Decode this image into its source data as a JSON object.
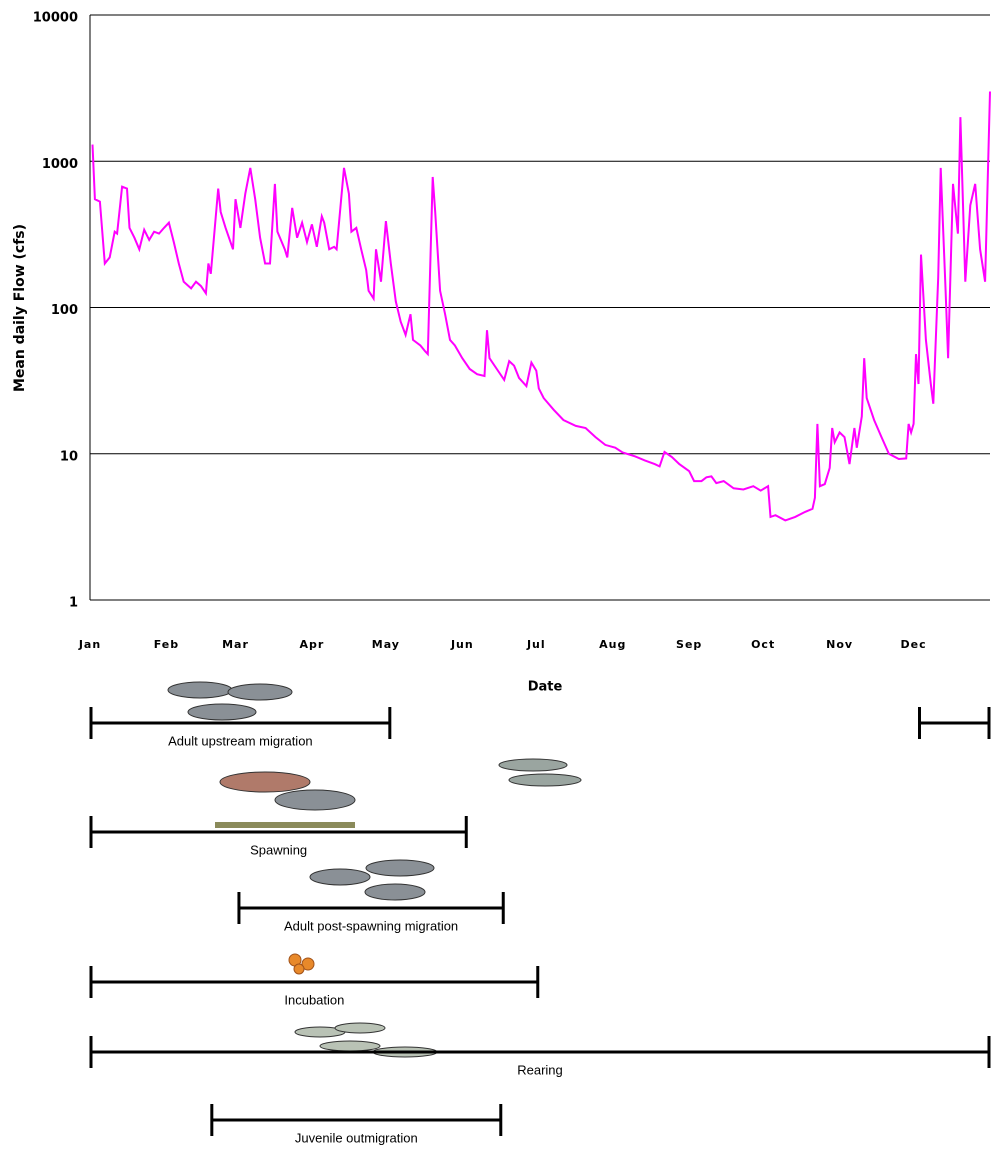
{
  "chart_data": {
    "type": "line",
    "y_label": "Mean daily Flow (cfs)",
    "x_label": "Date",
    "log_scale_y": true,
    "grid": true,
    "color": "#ff00ff",
    "xlim": [
      0,
      365
    ],
    "xticks": [
      {
        "value": 0,
        "label": "Jan"
      },
      {
        "value": 31,
        "label": "Feb"
      },
      {
        "value": 59,
        "label": "Mar"
      },
      {
        "value": 90,
        "label": "Apr"
      },
      {
        "value": 120,
        "label": "May"
      },
      {
        "value": 151,
        "label": "Jun"
      },
      {
        "value": 181,
        "label": "Jul"
      },
      {
        "value": 212,
        "label": "Aug"
      },
      {
        "value": 243,
        "label": "Sep"
      },
      {
        "value": 273,
        "label": "Oct"
      },
      {
        "value": 304,
        "label": "Nov"
      },
      {
        "value": 334,
        "label": "Dec"
      }
    ],
    "ylim": [
      1,
      10000
    ],
    "yticks": [
      1,
      10,
      100,
      1000,
      10000
    ],
    "x": [
      1,
      2,
      4,
      6,
      8,
      10,
      11,
      13,
      15,
      16,
      18,
      20,
      22,
      24,
      26,
      28,
      30,
      32,
      34,
      36,
      38,
      41,
      43,
      45,
      47,
      48,
      49,
      52,
      53,
      55,
      58,
      59,
      61,
      63,
      65,
      67,
      69,
      71,
      73,
      75,
      76,
      79,
      80,
      82,
      84,
      86,
      88,
      90,
      92,
      94,
      95,
      97,
      99,
      100,
      103,
      105,
      106,
      108,
      110,
      112,
      113,
      115,
      116,
      118,
      120,
      122,
      124,
      126,
      128,
      130,
      131,
      134,
      136,
      137,
      139,
      140,
      142,
      144,
      146,
      148,
      151,
      154,
      157,
      160,
      161,
      162,
      165,
      168,
      170,
      172,
      174,
      177,
      179,
      181,
      182,
      184,
      188,
      192,
      197,
      201,
      205,
      209,
      213,
      216,
      221,
      225,
      229,
      231,
      233,
      236,
      239,
      243,
      245,
      248,
      250,
      252,
      254,
      257,
      261,
      265,
      269,
      272,
      275,
      276,
      278,
      282,
      286,
      290,
      293,
      294,
      295,
      296,
      298,
      300,
      301,
      302,
      304,
      306,
      308,
      310,
      311,
      313,
      314,
      315,
      318,
      321,
      324,
      328,
      331,
      332,
      333,
      334,
      335,
      336,
      337,
      339,
      341,
      342,
      344,
      345,
      347,
      348,
      350,
      352,
      353,
      355,
      357,
      359,
      361,
      363,
      365
    ],
    "values": [
      1300,
      550,
      530,
      200,
      220,
      330,
      320,
      670,
      650,
      350,
      300,
      250,
      340,
      290,
      330,
      320,
      350,
      380,
      280,
      200,
      150,
      135,
      150,
      140,
      125,
      200,
      170,
      650,
      450,
      350,
      250,
      550,
      350,
      600,
      900,
      550,
      300,
      200,
      200,
      700,
      330,
      250,
      220,
      480,
      300,
      380,
      280,
      370,
      260,
      420,
      380,
      250,
      260,
      250,
      900,
      600,
      330,
      350,
      250,
      180,
      130,
      115,
      250,
      150,
      390,
      200,
      110,
      80,
      65,
      90,
      60,
      55,
      50,
      48,
      780,
      450,
      130,
      90,
      60,
      55,
      45,
      38,
      35,
      34,
      70,
      45,
      38,
      32,
      43,
      40,
      33,
      29,
      42,
      37,
      28,
      24,
      20,
      17,
      15.5,
      15,
      13,
      11.5,
      11,
      10.2,
      9.6,
      9,
      8.5,
      8.2,
      10.3,
      9.5,
      8.5,
      7.6,
      6.5,
      6.5,
      6.9,
      7,
      6.3,
      6.5,
      5.8,
      5.7,
      6,
      5.6,
      6,
      3.7,
      3.8,
      3.5,
      3.7,
      4,
      4.2,
      5,
      16,
      6,
      6.2,
      8,
      15,
      12,
      14,
      13,
      8.5,
      15,
      11,
      18,
      45,
      24,
      17,
      13,
      10,
      9.2,
      9.3,
      16,
      14,
      16,
      48,
      30,
      230,
      60,
      30,
      22,
      160,
      900,
      130,
      45,
      700,
      320,
      2000,
      150,
      500,
      700,
      250,
      150,
      3000
    ],
    "life_stages": [
      {
        "label": "Adult upstream migration",
        "spans": [
          [
            0,
            122
          ],
          [
            336,
            365
          ]
        ]
      },
      {
        "label": "Spawning",
        "spans": [
          [
            0,
            153
          ]
        ]
      },
      {
        "label": "Adult post-spawning migration",
        "spans": [
          [
            60,
            168
          ]
        ]
      },
      {
        "label": "Incubation",
        "spans": [
          [
            0,
            182
          ]
        ]
      },
      {
        "label": "Rearing",
        "spans": [
          [
            0,
            365
          ]
        ]
      },
      {
        "label": "Juvenile outmigration",
        "spans": [
          [
            49,
            167
          ]
        ]
      }
    ]
  }
}
